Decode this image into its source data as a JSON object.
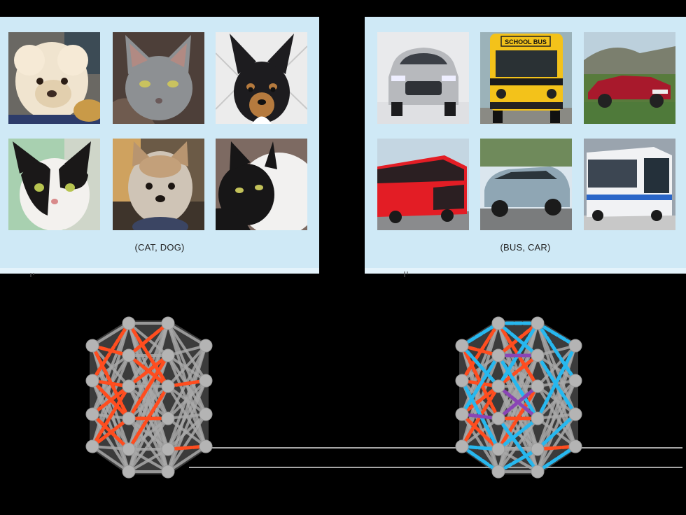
{
  "panels": {
    "left": {
      "caption": "(CAT, DOG)",
      "images": [
        "poodle",
        "gray-cat",
        "black-tan-dog",
        "black-white-cat",
        "yorkie",
        "tuxedo-cat"
      ]
    },
    "right": {
      "caption": "(BUS, CAR)",
      "images": [
        "silver-suv",
        "school-bus",
        "red-convertible",
        "red-double-decker",
        "blue-range-rover",
        "city-bus"
      ]
    }
  },
  "school_bus_sign": "SCHOOL BUS",
  "colors": {
    "panel_bg": "#cfe9f6",
    "node": "#b4b4b4",
    "edge": "#a9a9a9",
    "task_a_edges": "#ff4d1f",
    "task_b_edges": "#27b8ef",
    "shared_edges": "#8a45b5"
  }
}
